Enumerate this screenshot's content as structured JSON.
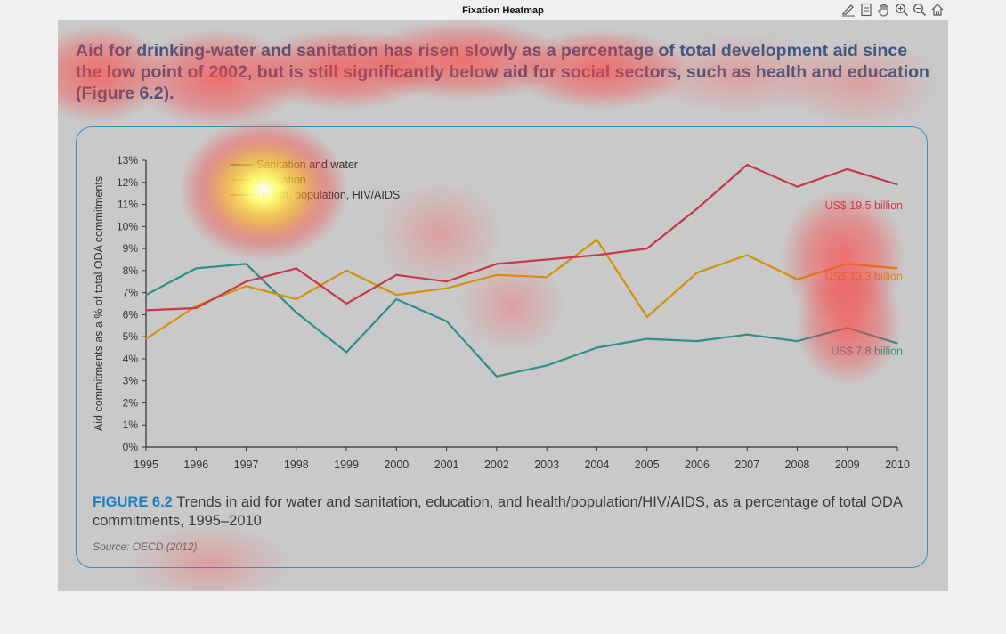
{
  "window": {
    "title": "Fixation Heatmap"
  },
  "toolbar": {
    "tools": [
      {
        "name": "edit-plot-icon"
      },
      {
        "name": "page-icon"
      },
      {
        "name": "pan-hand-icon"
      },
      {
        "name": "zoom-in-icon"
      },
      {
        "name": "zoom-out-icon"
      },
      {
        "name": "home-icon"
      }
    ]
  },
  "stimulus": {
    "heading": "Aid for drinking-water and sanitation has risen slowly as a percentage of total development aid since the low point of 2002, but is still significantly below aid for social sectors, such as health and education (Figure 6.2).",
    "caption_label": "FIGURE 6.2",
    "caption_text": " Trends in aid for water and sanitation, education, and health/population/HIV/AIDS, as a percentage of total ODA commitments, 1995–2010",
    "source": "Source: OECD (2012)"
  },
  "chart_data": {
    "type": "line",
    "x": [
      1995,
      1996,
      1997,
      1998,
      1999,
      2000,
      2001,
      2002,
      2003,
      2004,
      2005,
      2006,
      2007,
      2008,
      2009,
      2010
    ],
    "ylabel": "Aid commitments as a % of total ODA commitments",
    "ylim": [
      0,
      13
    ],
    "yticks": [
      "0%",
      "1%",
      "2%",
      "3%",
      "4%",
      "5%",
      "6%",
      "7%",
      "8%",
      "9%",
      "10%",
      "11%",
      "12%",
      "13%"
    ],
    "legend_position": "top-left",
    "series": [
      {
        "name": "Sanitation and water",
        "color": "#2f8f8a",
        "values": [
          6.9,
          8.1,
          8.3,
          6.1,
          4.3,
          6.7,
          5.7,
          3.2,
          3.7,
          4.5,
          4.9,
          4.8,
          5.1,
          4.8,
          5.4,
          4.7
        ],
        "end_label": "US$ 7.8 billion"
      },
      {
        "name": "Education",
        "color": "#d4900a",
        "values": [
          4.9,
          6.4,
          7.3,
          6.7,
          8.0,
          6.9,
          7.2,
          7.8,
          7.7,
          9.4,
          5.9,
          7.9,
          8.7,
          7.6,
          8.3,
          8.1
        ],
        "end_label": "US$ 13.3 billion"
      },
      {
        "name": "Health, population, HIV/AIDS",
        "color": "#c8384d",
        "values": [
          6.2,
          6.3,
          7.5,
          8.1,
          6.5,
          7.8,
          7.5,
          8.3,
          8.5,
          8.7,
          9.0,
          10.8,
          12.8,
          11.8,
          12.6,
          11.9
        ],
        "end_label": "US$ 19.5 billion"
      }
    ]
  },
  "heatmap": {
    "note_colors": {
      "low": "#ff4040",
      "high": "#ffff60"
    },
    "hotspots": [
      {
        "intensity": 1.0,
        "kind": "peak"
      },
      {
        "intensity": 0.75,
        "kind": "warm"
      },
      {
        "intensity": 0.6,
        "kind": "warm"
      },
      {
        "intensity": 0.5,
        "kind": "warm"
      }
    ]
  }
}
